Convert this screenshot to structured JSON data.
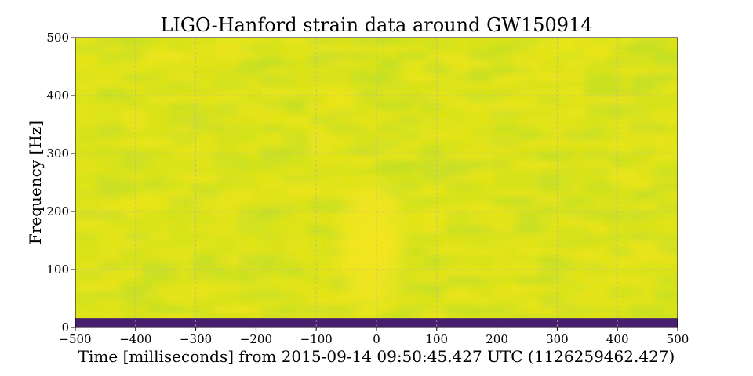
{
  "chart_data": {
    "type": "heatmap",
    "title": "LIGO-Hanford strain data around GW150914",
    "xlabel": "Time [milliseconds] from 2015-09-14 09:50:45.427 UTC (1126259462.427)",
    "ylabel": "Frequency [Hz]",
    "xlim": [
      -500,
      500
    ],
    "ylim": [
      0,
      500
    ],
    "x_ticks": [
      -500,
      -400,
      -300,
      -200,
      -100,
      0,
      100,
      200,
      300,
      400,
      500
    ],
    "y_ticks": [
      0,
      100,
      200,
      300,
      400,
      500
    ],
    "grid": true,
    "colormap": "viridis",
    "colors": {
      "background_field": "#dde318",
      "low_band": "#471f6e",
      "bright_track": "#f7e621",
      "greenish_patch": "#c6de2b",
      "grid_line": "#b0b0b0"
    },
    "low_frequency_band_hz": [
      0,
      16
    ],
    "chirp_feature": {
      "description_time_ms": [
        -60,
        40
      ],
      "frequency_hz": [
        30,
        250
      ]
    }
  }
}
